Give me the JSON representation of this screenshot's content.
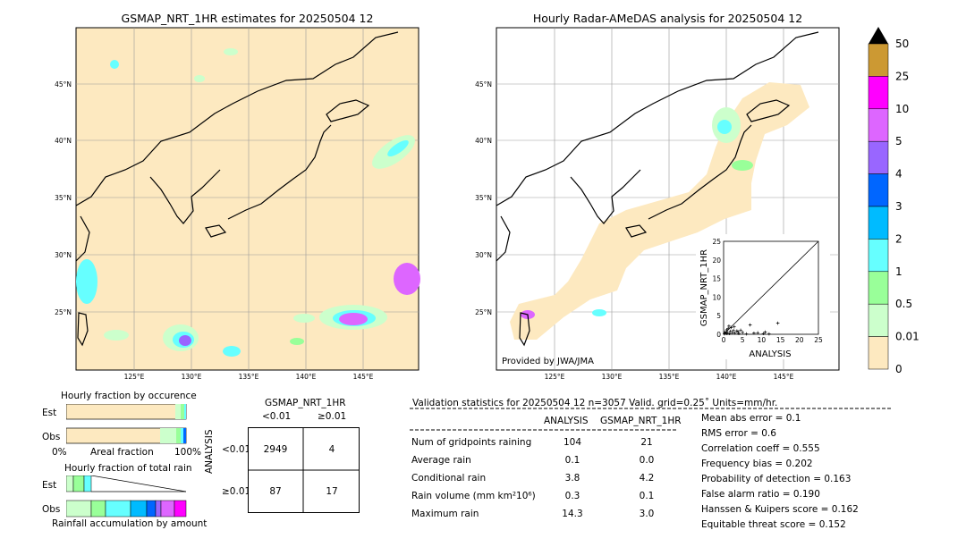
{
  "maps": {
    "left_title": "GSMAP_NRT_1HR estimates for 20250504 12",
    "right_title": "Hourly Radar-AMeDAS analysis for 20250504 12",
    "lat_ticks": [
      "45°N",
      "40°N",
      "35°N",
      "30°N",
      "25°N"
    ],
    "lon_ticks": [
      "125°E",
      "130°E",
      "135°E",
      "140°E",
      "145°E"
    ],
    "credit": "Provided by JWA/JMA"
  },
  "colorbar": {
    "labels": [
      "50",
      "25",
      "10",
      "5",
      "4",
      "3",
      "2",
      "1",
      "0.5",
      "0.01",
      "0"
    ],
    "colors": [
      "#cc9933",
      "#ff00ff",
      "#dd66ff",
      "#9966ff",
      "#0066ff",
      "#00bbff",
      "#66ffff",
      "#99ff99",
      "#ccffcc",
      "#fde9c0"
    ]
  },
  "scatter": {
    "xlabel": "ANALYSIS",
    "ylabel": "GSMAP_NRT_1HR",
    "ticks": [
      "0",
      "5",
      "10",
      "15",
      "20",
      "25"
    ]
  },
  "occurrence": {
    "title": "Hourly fraction by occurence",
    "row_labels": [
      "Est",
      "Obs"
    ],
    "axis_left": "0%",
    "axis_mid": "Areal fraction",
    "axis_right": "100%"
  },
  "rainfall": {
    "title": "Hourly fraction of total rain",
    "row_labels": [
      "Est",
      "Obs"
    ],
    "axis_mid": "Rainfall accumulation by amount"
  },
  "contingency": {
    "title": "GSMAP_NRT_1HR",
    "col_headers": [
      "<0.01",
      "≥0.01"
    ],
    "row_headers": [
      "<0.01",
      "≥0.01"
    ],
    "side_label": "ANALYSIS",
    "cells": [
      [
        "2949",
        "4"
      ],
      [
        "87",
        "17"
      ]
    ]
  },
  "validation": {
    "header": "Validation statistics for 20250504 12  n=3057 Valid. grid=0.25˚ Units=mm/hr.",
    "col_headers": [
      "ANALYSIS",
      "GSMAP_NRT_1HR"
    ],
    "rows": [
      {
        "label": "Num of gridpoints raining",
        "analysis": "104",
        "gsmap": "21"
      },
      {
        "label": "Average rain",
        "analysis": "0.1",
        "gsmap": "0.0"
      },
      {
        "label": "Conditional rain",
        "analysis": "3.8",
        "gsmap": "4.2"
      },
      {
        "label": "Rain volume (mm km²10⁶)",
        "analysis": "0.3",
        "gsmap": "0.1"
      },
      {
        "label": "Maximum rain",
        "analysis": "14.3",
        "gsmap": "3.0"
      }
    ],
    "scores": [
      "Mean abs error =    0.1",
      "RMS error =    0.6",
      "Correlation coeff =  0.555",
      "Frequency bias =  0.202",
      "Probability of detection =  0.163",
      "False alarm ratio =  0.190",
      "Hanssen & Kuipers score =  0.162",
      "Equitable threat score =  0.152"
    ]
  },
  "chart_data": {
    "type": "scatter",
    "xlabel": "ANALYSIS",
    "ylabel": "GSMAP_NRT_1HR",
    "xlim": [
      0,
      25
    ],
    "ylim": [
      0,
      25
    ],
    "points": [
      [
        0.2,
        0.1
      ],
      [
        0.5,
        0.3
      ],
      [
        0.8,
        1.2
      ],
      [
        1.0,
        0.5
      ],
      [
        1.2,
        1.5
      ],
      [
        1.5,
        0.2
      ],
      [
        1.8,
        0.8
      ],
      [
        2.0,
        1.8
      ],
      [
        2.3,
        0.4
      ],
      [
        2.6,
        1.0
      ],
      [
        3.0,
        0.3
      ],
      [
        3.5,
        0.9
      ],
      [
        4.0,
        0.2
      ],
      [
        4.5,
        1.1
      ],
      [
        5.0,
        0.5
      ],
      [
        6.0,
        0.1
      ],
      [
        7.0,
        2.5
      ],
      [
        8.0,
        0.3
      ],
      [
        9.0,
        0.4
      ],
      [
        10.5,
        0.2
      ],
      [
        11.0,
        0.6
      ],
      [
        12.0,
        0.1
      ],
      [
        14.3,
        3.0
      ],
      [
        0.4,
        0.6
      ],
      [
        0.9,
        0.2
      ],
      [
        1.4,
        2.2
      ],
      [
        2.8,
        2.0
      ],
      [
        3.8,
        0.7
      ]
    ]
  }
}
